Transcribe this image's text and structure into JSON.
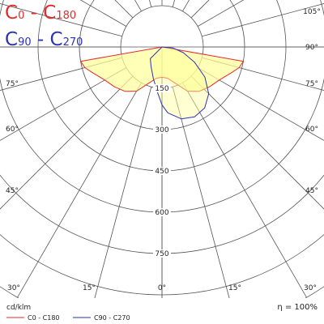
{
  "legend_title_red": {
    "c1": "C",
    "s1": "0",
    "dash": " - ",
    "c2": "C",
    "s2": "180"
  },
  "legend_title_blue": {
    "c1": "C",
    "s1": "90",
    "dash": " - ",
    "c2": "C",
    "s2": "270"
  },
  "colors": {
    "red": "#e6292b",
    "blue": "#2b32b5",
    "fill": "#ffff99",
    "grid": "#555555"
  },
  "chart_data": {
    "type": "polar",
    "unit": "cd/klm",
    "efficiency_label": "η = 100%",
    "radial_ticks": [
      150,
      300,
      450,
      600,
      750
    ],
    "angle_labels": [
      "0°",
      "15°",
      "30°",
      "45°",
      "60°",
      "75°",
      "90°",
      "105°"
    ],
    "series": [
      {
        "name": "C0 - C180",
        "color": "#e6292b",
        "points": [
          {
            "angle": -80,
            "value": 300
          },
          {
            "angle": -75,
            "value": 290
          },
          {
            "angle": -70,
            "value": 270
          },
          {
            "angle": -60,
            "value": 240
          },
          {
            "angle": -50,
            "value": 225
          },
          {
            "angle": -40,
            "value": 210
          },
          {
            "angle": -30,
            "value": 185
          },
          {
            "angle": -20,
            "value": 140
          },
          {
            "angle": -10,
            "value": 115
          },
          {
            "angle": 0,
            "value": 110
          },
          {
            "angle": 10,
            "value": 115
          },
          {
            "angle": 20,
            "value": 140
          },
          {
            "angle": 30,
            "value": 185
          },
          {
            "angle": 40,
            "value": 210
          },
          {
            "angle": 50,
            "value": 225
          },
          {
            "angle": 60,
            "value": 240
          },
          {
            "angle": 70,
            "value": 270
          },
          {
            "angle": 75,
            "value": 290
          },
          {
            "angle": 80,
            "value": 300
          }
        ]
      },
      {
        "name": "C90 - C270",
        "color": "#2b32b5",
        "points": [
          {
            "angle": -45,
            "value": 60
          },
          {
            "angle": -30,
            "value": 80
          },
          {
            "angle": -15,
            "value": 120
          },
          {
            "angle": -5,
            "value": 170
          },
          {
            "angle": 0,
            "value": 210
          },
          {
            "angle": 5,
            "value": 240
          },
          {
            "angle": 15,
            "value": 270
          },
          {
            "angle": 25,
            "value": 280
          },
          {
            "angle": 35,
            "value": 270
          },
          {
            "angle": 45,
            "value": 240
          },
          {
            "angle": 55,
            "value": 190
          },
          {
            "angle": 65,
            "value": 130
          },
          {
            "angle": 75,
            "value": 80
          },
          {
            "angle": 85,
            "value": 40
          }
        ]
      }
    ]
  }
}
